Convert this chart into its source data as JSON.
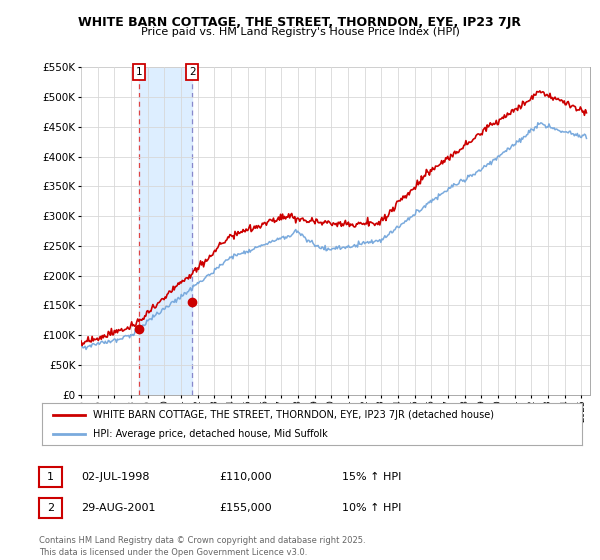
{
  "title_line1": "WHITE BARN COTTAGE, THE STREET, THORNDON, EYE, IP23 7JR",
  "title_line2": "Price paid vs. HM Land Registry's House Price Index (HPI)",
  "ylim": [
    0,
    550000
  ],
  "yticks": [
    0,
    50000,
    100000,
    150000,
    200000,
    250000,
    300000,
    350000,
    400000,
    450000,
    500000,
    550000
  ],
  "sale1_year": 1998.5,
  "sale1_label": "1",
  "sale1_price": 110000,
  "sale2_year": 2001.67,
  "sale2_label": "2",
  "sale2_price": 155000,
  "legend_entry1": "WHITE BARN COTTAGE, THE STREET, THORNDON, EYE, IP23 7JR (detached house)",
  "legend_entry2": "HPI: Average price, detached house, Mid Suffolk",
  "table_row1": [
    "1",
    "02-JUL-1998",
    "£110,000",
    "15% ↑ HPI"
  ],
  "table_row2": [
    "2",
    "29-AUG-2001",
    "£155,000",
    "10% ↑ HPI"
  ],
  "footer": "Contains HM Land Registry data © Crown copyright and database right 2025.\nThis data is licensed under the Open Government Licence v3.0.",
  "line_color_house": "#cc0000",
  "line_color_hpi": "#7aaadd",
  "bg_color": "#ffffff",
  "grid_color": "#d8d8d8",
  "sale1_vline_color": "#dd4444",
  "sale2_vline_color": "#8888cc",
  "shade_color": "#ddeeff",
  "sale_marker_color": "#cc0000",
  "xlim_start": 1995,
  "xlim_end": 2025.5
}
